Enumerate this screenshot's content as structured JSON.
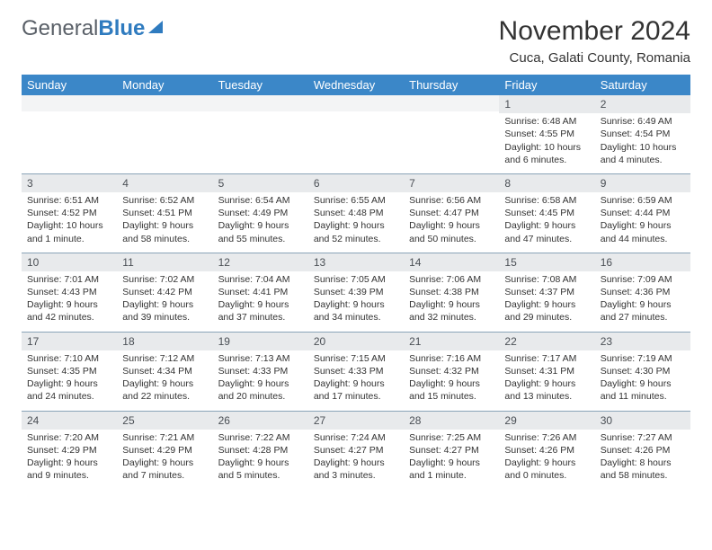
{
  "logo": {
    "text1": "General",
    "text2": "Blue"
  },
  "title": "November 2024",
  "location": "Cuca, Galati County, Romania",
  "day_headers": [
    "Sunday",
    "Monday",
    "Tuesday",
    "Wednesday",
    "Thursday",
    "Friday",
    "Saturday"
  ],
  "colors": {
    "header_bg": "#3b87c8",
    "header_text": "#ffffff",
    "daynum_bg": "#e8eaec",
    "border": "#8aa4b8",
    "text": "#333333",
    "background": "#ffffff"
  },
  "typography": {
    "title_fontsize": 30,
    "location_fontsize": 15,
    "header_fontsize": 13,
    "cell_fontsize": 10.5
  },
  "weeks": [
    [
      null,
      null,
      null,
      null,
      null,
      {
        "day": "1",
        "sunrise": "Sunrise: 6:48 AM",
        "sunset": "Sunset: 4:55 PM",
        "daylight": "Daylight: 10 hours and 6 minutes."
      },
      {
        "day": "2",
        "sunrise": "Sunrise: 6:49 AM",
        "sunset": "Sunset: 4:54 PM",
        "daylight": "Daylight: 10 hours and 4 minutes."
      }
    ],
    [
      {
        "day": "3",
        "sunrise": "Sunrise: 6:51 AM",
        "sunset": "Sunset: 4:52 PM",
        "daylight": "Daylight: 10 hours and 1 minute."
      },
      {
        "day": "4",
        "sunrise": "Sunrise: 6:52 AM",
        "sunset": "Sunset: 4:51 PM",
        "daylight": "Daylight: 9 hours and 58 minutes."
      },
      {
        "day": "5",
        "sunrise": "Sunrise: 6:54 AM",
        "sunset": "Sunset: 4:49 PM",
        "daylight": "Daylight: 9 hours and 55 minutes."
      },
      {
        "day": "6",
        "sunrise": "Sunrise: 6:55 AM",
        "sunset": "Sunset: 4:48 PM",
        "daylight": "Daylight: 9 hours and 52 minutes."
      },
      {
        "day": "7",
        "sunrise": "Sunrise: 6:56 AM",
        "sunset": "Sunset: 4:47 PM",
        "daylight": "Daylight: 9 hours and 50 minutes."
      },
      {
        "day": "8",
        "sunrise": "Sunrise: 6:58 AM",
        "sunset": "Sunset: 4:45 PM",
        "daylight": "Daylight: 9 hours and 47 minutes."
      },
      {
        "day": "9",
        "sunrise": "Sunrise: 6:59 AM",
        "sunset": "Sunset: 4:44 PM",
        "daylight": "Daylight: 9 hours and 44 minutes."
      }
    ],
    [
      {
        "day": "10",
        "sunrise": "Sunrise: 7:01 AM",
        "sunset": "Sunset: 4:43 PM",
        "daylight": "Daylight: 9 hours and 42 minutes."
      },
      {
        "day": "11",
        "sunrise": "Sunrise: 7:02 AM",
        "sunset": "Sunset: 4:42 PM",
        "daylight": "Daylight: 9 hours and 39 minutes."
      },
      {
        "day": "12",
        "sunrise": "Sunrise: 7:04 AM",
        "sunset": "Sunset: 4:41 PM",
        "daylight": "Daylight: 9 hours and 37 minutes."
      },
      {
        "day": "13",
        "sunrise": "Sunrise: 7:05 AM",
        "sunset": "Sunset: 4:39 PM",
        "daylight": "Daylight: 9 hours and 34 minutes."
      },
      {
        "day": "14",
        "sunrise": "Sunrise: 7:06 AM",
        "sunset": "Sunset: 4:38 PM",
        "daylight": "Daylight: 9 hours and 32 minutes."
      },
      {
        "day": "15",
        "sunrise": "Sunrise: 7:08 AM",
        "sunset": "Sunset: 4:37 PM",
        "daylight": "Daylight: 9 hours and 29 minutes."
      },
      {
        "day": "16",
        "sunrise": "Sunrise: 7:09 AM",
        "sunset": "Sunset: 4:36 PM",
        "daylight": "Daylight: 9 hours and 27 minutes."
      }
    ],
    [
      {
        "day": "17",
        "sunrise": "Sunrise: 7:10 AM",
        "sunset": "Sunset: 4:35 PM",
        "daylight": "Daylight: 9 hours and 24 minutes."
      },
      {
        "day": "18",
        "sunrise": "Sunrise: 7:12 AM",
        "sunset": "Sunset: 4:34 PM",
        "daylight": "Daylight: 9 hours and 22 minutes."
      },
      {
        "day": "19",
        "sunrise": "Sunrise: 7:13 AM",
        "sunset": "Sunset: 4:33 PM",
        "daylight": "Daylight: 9 hours and 20 minutes."
      },
      {
        "day": "20",
        "sunrise": "Sunrise: 7:15 AM",
        "sunset": "Sunset: 4:33 PM",
        "daylight": "Daylight: 9 hours and 17 minutes."
      },
      {
        "day": "21",
        "sunrise": "Sunrise: 7:16 AM",
        "sunset": "Sunset: 4:32 PM",
        "daylight": "Daylight: 9 hours and 15 minutes."
      },
      {
        "day": "22",
        "sunrise": "Sunrise: 7:17 AM",
        "sunset": "Sunset: 4:31 PM",
        "daylight": "Daylight: 9 hours and 13 minutes."
      },
      {
        "day": "23",
        "sunrise": "Sunrise: 7:19 AM",
        "sunset": "Sunset: 4:30 PM",
        "daylight": "Daylight: 9 hours and 11 minutes."
      }
    ],
    [
      {
        "day": "24",
        "sunrise": "Sunrise: 7:20 AM",
        "sunset": "Sunset: 4:29 PM",
        "daylight": "Daylight: 9 hours and 9 minutes."
      },
      {
        "day": "25",
        "sunrise": "Sunrise: 7:21 AM",
        "sunset": "Sunset: 4:29 PM",
        "daylight": "Daylight: 9 hours and 7 minutes."
      },
      {
        "day": "26",
        "sunrise": "Sunrise: 7:22 AM",
        "sunset": "Sunset: 4:28 PM",
        "daylight": "Daylight: 9 hours and 5 minutes."
      },
      {
        "day": "27",
        "sunrise": "Sunrise: 7:24 AM",
        "sunset": "Sunset: 4:27 PM",
        "daylight": "Daylight: 9 hours and 3 minutes."
      },
      {
        "day": "28",
        "sunrise": "Sunrise: 7:25 AM",
        "sunset": "Sunset: 4:27 PM",
        "daylight": "Daylight: 9 hours and 1 minute."
      },
      {
        "day": "29",
        "sunrise": "Sunrise: 7:26 AM",
        "sunset": "Sunset: 4:26 PM",
        "daylight": "Daylight: 9 hours and 0 minutes."
      },
      {
        "day": "30",
        "sunrise": "Sunrise: 7:27 AM",
        "sunset": "Sunset: 4:26 PM",
        "daylight": "Daylight: 8 hours and 58 minutes."
      }
    ]
  ]
}
